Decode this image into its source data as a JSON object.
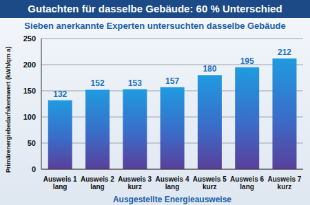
{
  "chart_data": {
    "type": "bar",
    "title": "Gutachten für dasselbe Gebäude: 60 % Unterschied",
    "subtitle": "Sieben anerkannte Experten untersuchten dasselbe Gebäude",
    "x_label": "Ausgestellte Energieausweise",
    "y_label": "Primärenergiebedarfskennwert (kWh/qm a)",
    "categories": [
      "Ausweis 1 lang",
      "Ausweis 2 lang",
      "Ausweis 3 kurz",
      "Ausweis 4 lang",
      "Ausweis 5 kurz",
      "Ausweis 6 lang",
      "Ausweis 7 kurz"
    ],
    "values": [
      132,
      152,
      153,
      157,
      180,
      195,
      212
    ],
    "color": "#1f9be0",
    "ylim": [
      0,
      250
    ],
    "yticks": [
      0,
      50,
      100,
      150,
      200,
      250
    ],
    "grid": true,
    "data_labels": true
  }
}
